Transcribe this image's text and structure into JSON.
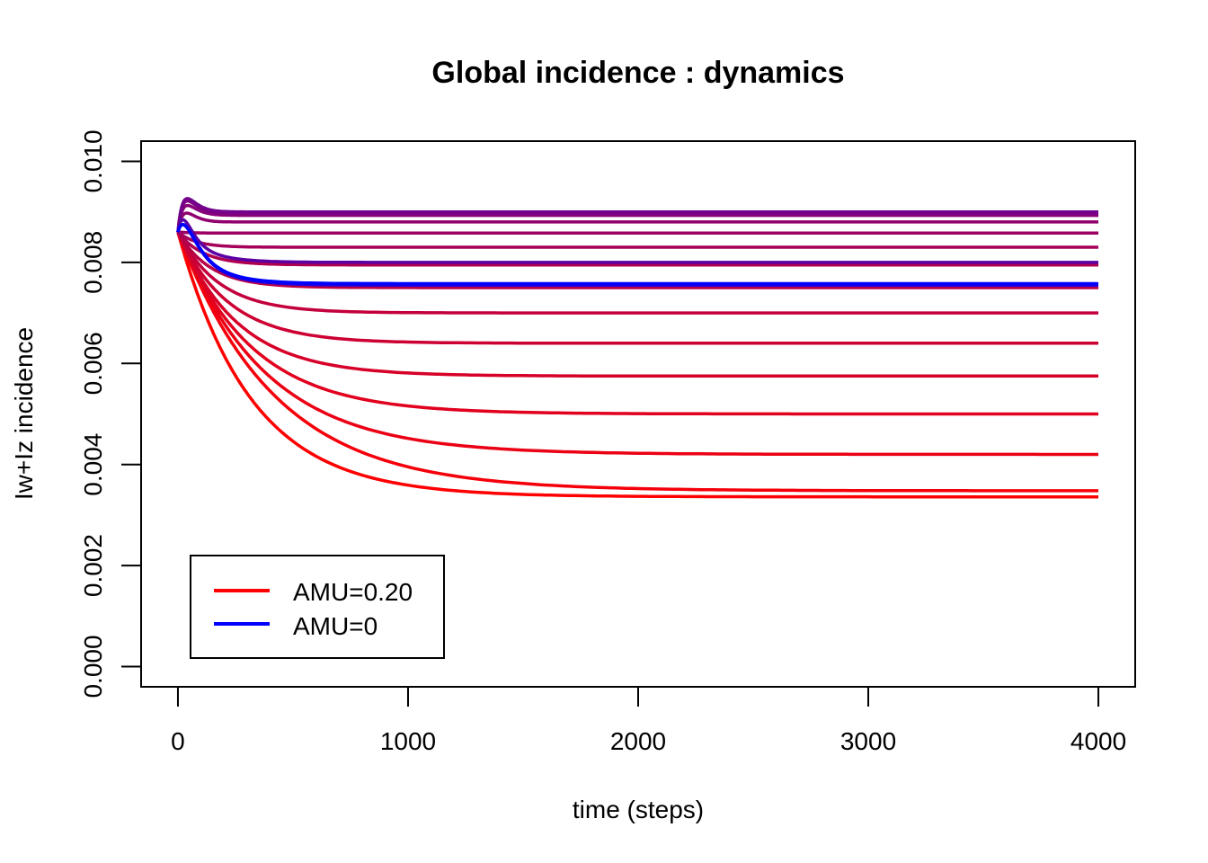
{
  "chart_data": {
    "type": "line",
    "title": "Global incidence : dynamics",
    "xlabel": "time (steps)",
    "ylabel": "Iw+Iz incidence",
    "xlim": [
      -160,
      4160
    ],
    "ylim": [
      -0.0004,
      0.0104
    ],
    "xticks": [
      0,
      1000,
      2000,
      3000,
      4000
    ],
    "xtick_labels": [
      "0",
      "1000",
      "2000",
      "3000",
      "4000"
    ],
    "yticks": [
      0.0,
      0.002,
      0.004,
      0.006,
      0.008,
      0.01
    ],
    "ytick_labels": [
      "0.000",
      "0.002",
      "0.004",
      "0.006",
      "0.008",
      "0.010"
    ],
    "grid": false,
    "legend_position": "bottom-left",
    "legend": [
      {
        "label": "AMU=0.20",
        "color": "#ff0000"
      },
      {
        "label": "AMU=0",
        "color": "#0000ff"
      }
    ],
    "series": [
      {
        "color": "#ff0000",
        "start": 0.0086,
        "final": 0.00336,
        "tau": 320,
        "peak": 0,
        "peak_t": 0
      },
      {
        "color": "#f5000a",
        "start": 0.0086,
        "final": 0.00348,
        "tau": 420,
        "peak": 0,
        "peak_t": 0
      },
      {
        "color": "#eb0014",
        "start": 0.0086,
        "final": 0.0042,
        "tau": 380,
        "peak": 0,
        "peak_t": 0
      },
      {
        "color": "#e1001e",
        "start": 0.0086,
        "final": 0.005,
        "tau": 320,
        "peak": 0,
        "peak_t": 0
      },
      {
        "color": "#d70028",
        "start": 0.0086,
        "final": 0.00575,
        "tau": 260,
        "peak": 0,
        "peak_t": 0
      },
      {
        "color": "#cd0032",
        "start": 0.0086,
        "final": 0.0064,
        "tau": 220,
        "peak": 0,
        "peak_t": 0
      },
      {
        "color": "#c3003c",
        "start": 0.0086,
        "final": 0.007,
        "tau": 180,
        "peak": 0,
        "peak_t": 0
      },
      {
        "color": "#b90046",
        "start": 0.0086,
        "final": 0.0075,
        "tau": 140,
        "peak": 0,
        "peak_t": 0
      },
      {
        "color": "#af0050",
        "start": 0.0086,
        "final": 0.00795,
        "tau": 110,
        "peak": 0,
        "peak_t": 0
      },
      {
        "color": "#a5005a",
        "start": 0.0086,
        "final": 0.0083,
        "tau": 80,
        "peak": 0,
        "peak_t": 0
      },
      {
        "color": "#9b0064",
        "start": 0.0086,
        "final": 0.00858,
        "tau": 60,
        "peak": 0,
        "peak_t": 0
      },
      {
        "color": "#91006e",
        "start": 0.0086,
        "final": 0.0088,
        "tau": 45,
        "peak": 0.0003,
        "peak_t": 30
      },
      {
        "color": "#870078",
        "start": 0.0086,
        "final": 0.00893,
        "tau": 35,
        "peak": 0.00035,
        "peak_t": 30
      },
      {
        "color": "#7d0082",
        "start": 0.0086,
        "final": 0.00897,
        "tau": 30,
        "peak": 0.0004,
        "peak_t": 30
      },
      {
        "color": "#73008c",
        "start": 0.0086,
        "final": 0.009,
        "tau": 25,
        "peak": 0.0004,
        "peak_t": 30
      },
      {
        "color": "#5a00a5",
        "start": 0.0086,
        "final": 0.008,
        "tau": 120,
        "peak": 0.0004,
        "peak_t": 30
      },
      {
        "color": "#1e00e1",
        "start": 0.0086,
        "final": 0.00755,
        "tau": 130,
        "peak": 0.0004,
        "peak_t": 40
      },
      {
        "color": "#0000ff",
        "start": 0.0086,
        "final": 0.00758,
        "tau": 130,
        "peak": 0.0004,
        "peak_t": 40
      }
    ]
  }
}
